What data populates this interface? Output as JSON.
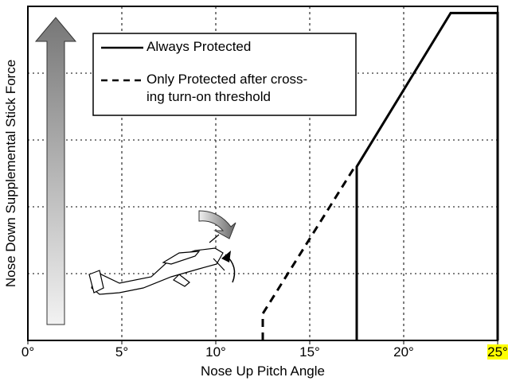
{
  "chart_data": {
    "type": "line",
    "x_label": "Nose Up Pitch Angle",
    "y_label": "Nose Down Supplemental Stick Force",
    "xlim": [
      0,
      25
    ],
    "ylim": [
      0,
      5
    ],
    "xticks": [
      {
        "value": 0,
        "label": "0°"
      },
      {
        "value": 5,
        "label": "5°"
      },
      {
        "value": 10,
        "label": "10°"
      },
      {
        "value": 15,
        "label": "15°"
      },
      {
        "value": 20,
        "label": "20°"
      },
      {
        "value": 25,
        "label": "25°"
      }
    ],
    "yticks": [
      1,
      2,
      3,
      4
    ],
    "ytick_labels": false,
    "grid": true,
    "series": [
      {
        "name": "Always Protected",
        "color": "#000000",
        "dash": false,
        "x": [
          17.5,
          17.5,
          22.5,
          25,
          25
        ],
        "values": [
          0,
          2.6,
          4.9,
          4.9,
          0
        ]
      },
      {
        "name": "Only Protected after cross-\ning turn-on threshold",
        "color": "#000000",
        "dash": true,
        "x": [
          12.5,
          12.5,
          17.4
        ],
        "values": [
          0,
          0.4,
          2.6
        ]
      }
    ]
  }
}
